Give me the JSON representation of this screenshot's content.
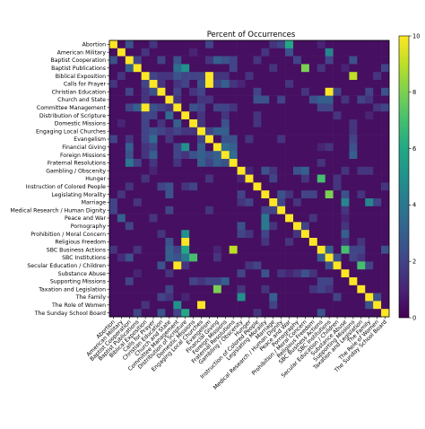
{
  "chart_data": {
    "type": "heatmap",
    "title": "Percent of Occurrences",
    "xlabel": "",
    "ylabel": "",
    "categories": [
      "Abortion",
      "American Military",
      "Baptist Cooperation",
      "Baptist Publications",
      "Biblical Exposition",
      "Calls for Prayer",
      "Christian Education",
      "Church and State",
      "Committee Management",
      "Distribution of Scripture",
      "Domestic Missions",
      "Engaging Local Churches",
      "Evangelism",
      "Financial Giving",
      "Foreign Missions",
      "Fraternal Resolutions",
      "Gambling / Obscenity",
      "Hunger",
      "Instruction of Colored People",
      "Legislating Morality",
      "Marriage",
      "Medical Research / Human Dignity",
      "Peace and War",
      "Pornography",
      "Prohibition / Moral Concern",
      "Religious Freedom",
      "SBC Business Actions",
      "SBC Institutions",
      "Secular Education / Children",
      "Substance Abuse",
      "Supporting Missions",
      "Taxation and Legislation",
      "The Family",
      "The Role of Women",
      "The Sunday School Board"
    ],
    "colorbar": {
      "min": 0,
      "max": 10,
      "ticks": [
        0,
        2,
        4,
        6,
        8,
        10
      ],
      "colormap": "viridis"
    },
    "diagonal_value": 10,
    "base_value": 0.4,
    "cells": [
      [
        0,
        2,
        2.5
      ],
      [
        0,
        5,
        1.5
      ],
      [
        0,
        12,
        2
      ],
      [
        0,
        20,
        1.5
      ],
      [
        0,
        26,
        1
      ],
      [
        1,
        4,
        1.5
      ],
      [
        1,
        10,
        1
      ],
      [
        1,
        22,
        2.5
      ],
      [
        1,
        27,
        1.2
      ],
      [
        2,
        3,
        2
      ],
      [
        2,
        8,
        2.5
      ],
      [
        2,
        12,
        1.5
      ],
      [
        2,
        15,
        2
      ],
      [
        2,
        23,
        2
      ],
      [
        2,
        27,
        2
      ],
      [
        2,
        30,
        2.5
      ],
      [
        3,
        2,
        3
      ],
      [
        3,
        8,
        3.5
      ],
      [
        3,
        15,
        2
      ],
      [
        3,
        29,
        1
      ],
      [
        4,
        8,
        2.5
      ],
      [
        4,
        9,
        2
      ],
      [
        4,
        12,
        2
      ],
      [
        4,
        13,
        1.5
      ],
      [
        4,
        14,
        1.5
      ],
      [
        4,
        33,
        1.5
      ],
      [
        5,
        4,
        2
      ],
      [
        5,
        6,
        1.5
      ],
      [
        5,
        8,
        1.5
      ],
      [
        5,
        12,
        3
      ],
      [
        5,
        14,
        3
      ],
      [
        5,
        16,
        1
      ],
      [
        6,
        2,
        2
      ],
      [
        6,
        4,
        1.5
      ],
      [
        6,
        8,
        2
      ],
      [
        6,
        11,
        2
      ],
      [
        6,
        24,
        1.5
      ],
      [
        6,
        28,
        2
      ],
      [
        7,
        4,
        1.5
      ],
      [
        7,
        18,
        2.5
      ],
      [
        7,
        21,
        2
      ],
      [
        7,
        26,
        3
      ],
      [
        7,
        32,
        1.5
      ],
      [
        8,
        2,
        2
      ],
      [
        8,
        3,
        3
      ],
      [
        8,
        5,
        2.5
      ],
      [
        8,
        7,
        1.5
      ],
      [
        8,
        10,
        2.5
      ],
      [
        8,
        14,
        2
      ],
      [
        8,
        27,
        2
      ],
      [
        9,
        5,
        2
      ],
      [
        9,
        11,
        1.5
      ],
      [
        9,
        14,
        1.5
      ],
      [
        9,
        32,
        1
      ],
      [
        10,
        4,
        2
      ],
      [
        10,
        6,
        1.5
      ],
      [
        10,
        8,
        3
      ],
      [
        10,
        11,
        1.5
      ],
      [
        10,
        18,
        1.5
      ],
      [
        10,
        30,
        1.5
      ],
      [
        11,
        4,
        2
      ],
      [
        11,
        5,
        2.5
      ],
      [
        11,
        7,
        1.5
      ],
      [
        11,
        8,
        2
      ],
      [
        11,
        13,
        3
      ],
      [
        11,
        14,
        3
      ],
      [
        11,
        30,
        1.5
      ],
      [
        12,
        4,
        2
      ],
      [
        12,
        5,
        3.5
      ],
      [
        12,
        7,
        1.5
      ],
      [
        12,
        11,
        2
      ],
      [
        12,
        14,
        2.5
      ],
      [
        12,
        15,
        2.5
      ],
      [
        12,
        30,
        2
      ],
      [
        13,
        2,
        3
      ],
      [
        13,
        5,
        2
      ],
      [
        13,
        8,
        2
      ],
      [
        13,
        11,
        3
      ],
      [
        13,
        14,
        3.5
      ],
      [
        13,
        15,
        3
      ],
      [
        13,
        30,
        2.5
      ],
      [
        14,
        2,
        2.5
      ],
      [
        14,
        8,
        2
      ],
      [
        14,
        10,
        2.5
      ],
      [
        14,
        11,
        3
      ],
      [
        14,
        13,
        3
      ],
      [
        14,
        15,
        3.5
      ],
      [
        14,
        30,
        3
      ],
      [
        15,
        2,
        4
      ],
      [
        15,
        5,
        1.5
      ],
      [
        15,
        8,
        1.5
      ],
      [
        15,
        12,
        2
      ],
      [
        15,
        14,
        2.5
      ],
      [
        15,
        26,
        1.5
      ],
      [
        16,
        17,
        1
      ],
      [
        16,
        19,
        2.5
      ],
      [
        16,
        23,
        2.5
      ],
      [
        16,
        24,
        3
      ],
      [
        16,
        29,
        1.5
      ],
      [
        17,
        4,
        1.5
      ],
      [
        17,
        12,
        1.5
      ],
      [
        17,
        20,
        2
      ],
      [
        17,
        24,
        1.5
      ],
      [
        17,
        28,
        1.5
      ],
      [
        18,
        2,
        1.5
      ],
      [
        18,
        6,
        2
      ],
      [
        18,
        9,
        1.5
      ],
      [
        18,
        10,
        2
      ],
      [
        18,
        28,
        1.5
      ],
      [
        19,
        1,
        1.5
      ],
      [
        19,
        7,
        2.5
      ],
      [
        19,
        16,
        2
      ],
      [
        19,
        21,
        2.5
      ],
      [
        19,
        24,
        2
      ],
      [
        19,
        25,
        2
      ],
      [
        20,
        0,
        2
      ],
      [
        20,
        3,
        1.5
      ],
      [
        20,
        16,
        1.5
      ],
      [
        20,
        23,
        1.5
      ],
      [
        20,
        32,
        4.5
      ],
      [
        21,
        0,
        2
      ],
      [
        21,
        12,
        1.5
      ],
      [
        21,
        19,
        2
      ],
      [
        21,
        20,
        2
      ],
      [
        21,
        29,
        1.5
      ],
      [
        22,
        1,
        3
      ],
      [
        22,
        5,
        1.5
      ],
      [
        22,
        19,
        1.5
      ],
      [
        22,
        25,
        1.5
      ],
      [
        22,
        29,
        1
      ],
      [
        23,
        16,
        2.5
      ],
      [
        23,
        20,
        1.5
      ],
      [
        23,
        24,
        2
      ],
      [
        23,
        29,
        1.5
      ],
      [
        24,
        6,
        1.5
      ],
      [
        24,
        16,
        2
      ],
      [
        24,
        19,
        2
      ],
      [
        24,
        23,
        1.5
      ],
      [
        24,
        29,
        3
      ],
      [
        25,
        7,
        2.5
      ],
      [
        25,
        19,
        1.5
      ],
      [
        25,
        22,
        1.5
      ],
      [
        25,
        31,
        1.5
      ],
      [
        26,
        0,
        1.5
      ],
      [
        26,
        3,
        1.5
      ],
      [
        26,
        8,
        2
      ],
      [
        26,
        13,
        1
      ],
      [
        26,
        27,
        3
      ],
      [
        26,
        30,
        2
      ],
      [
        27,
        2,
        2.5
      ],
      [
        27,
        7,
        3
      ],
      [
        27,
        8,
        2.5
      ],
      [
        27,
        13,
        1.5
      ],
      [
        27,
        26,
        3
      ],
      [
        27,
        28,
        2.5
      ],
      [
        27,
        30,
        2
      ],
      [
        28,
        6,
        2.5
      ],
      [
        28,
        9,
        1.5
      ],
      [
        28,
        18,
        2
      ],
      [
        28,
        27,
        2.5
      ],
      [
        28,
        32,
        2
      ],
      [
        29,
        7,
        1.5
      ],
      [
        29,
        16,
        2
      ],
      [
        29,
        19,
        2.5
      ],
      [
        29,
        24,
        2.5
      ],
      [
        29,
        25,
        1.5
      ],
      [
        30,
        2,
        2
      ],
      [
        30,
        10,
        2
      ],
      [
        30,
        13,
        2
      ],
      [
        30,
        14,
        3
      ],
      [
        30,
        26,
        2
      ],
      [
        30,
        27,
        2
      ],
      [
        31,
        7,
        2
      ],
      [
        31,
        16,
        1.5
      ],
      [
        31,
        19,
        1.5
      ],
      [
        31,
        26,
        2
      ],
      [
        31,
        27,
        1.5
      ],
      [
        32,
        6,
        2
      ],
      [
        32,
        16,
        1.5
      ],
      [
        32,
        20,
        3
      ],
      [
        32,
        28,
        2
      ],
      [
        32,
        33,
        2.5
      ],
      [
        33,
        4,
        1.5
      ],
      [
        33,
        8,
        1.5
      ],
      [
        33,
        20,
        2
      ],
      [
        33,
        32,
        2.5
      ],
      [
        34,
        3,
        2
      ],
      [
        34,
        6,
        2.5
      ],
      [
        34,
        8,
        2
      ],
      [
        34,
        18,
        1.5
      ],
      [
        34,
        26,
        2.5
      ]
    ],
    "bright_cells": [
      [
        0,
        22,
        6
      ],
      [
        1,
        27,
        4.5
      ],
      [
        3,
        9,
        5
      ],
      [
        3,
        24,
        8
      ],
      [
        4,
        12,
        10
      ],
      [
        4,
        30,
        9
      ],
      [
        5,
        12,
        10
      ],
      [
        6,
        5,
        2.5
      ],
      [
        6,
        27,
        10
      ],
      [
        8,
        4,
        10
      ],
      [
        9,
        7,
        3.5
      ],
      [
        13,
        9,
        5
      ],
      [
        17,
        26,
        7
      ],
      [
        19,
        27,
        8
      ],
      [
        22,
        19,
        4
      ],
      [
        23,
        19,
        4
      ],
      [
        24,
        9,
        5
      ],
      [
        25,
        9,
        10
      ],
      [
        26,
        9,
        6
      ],
      [
        26,
        15,
        9
      ],
      [
        27,
        9,
        4
      ],
      [
        27,
        10,
        7
      ],
      [
        28,
        8,
        10
      ],
      [
        31,
        13,
        8
      ],
      [
        32,
        16,
        5
      ],
      [
        33,
        11,
        10
      ],
      [
        33,
        8,
        5
      ],
      [
        34,
        9,
        6
      ],
      [
        20,
        29,
        4.5
      ],
      [
        26,
        29,
        7
      ],
      [
        28,
        31,
        7
      ],
      [
        15,
        11,
        3
      ]
    ]
  }
}
